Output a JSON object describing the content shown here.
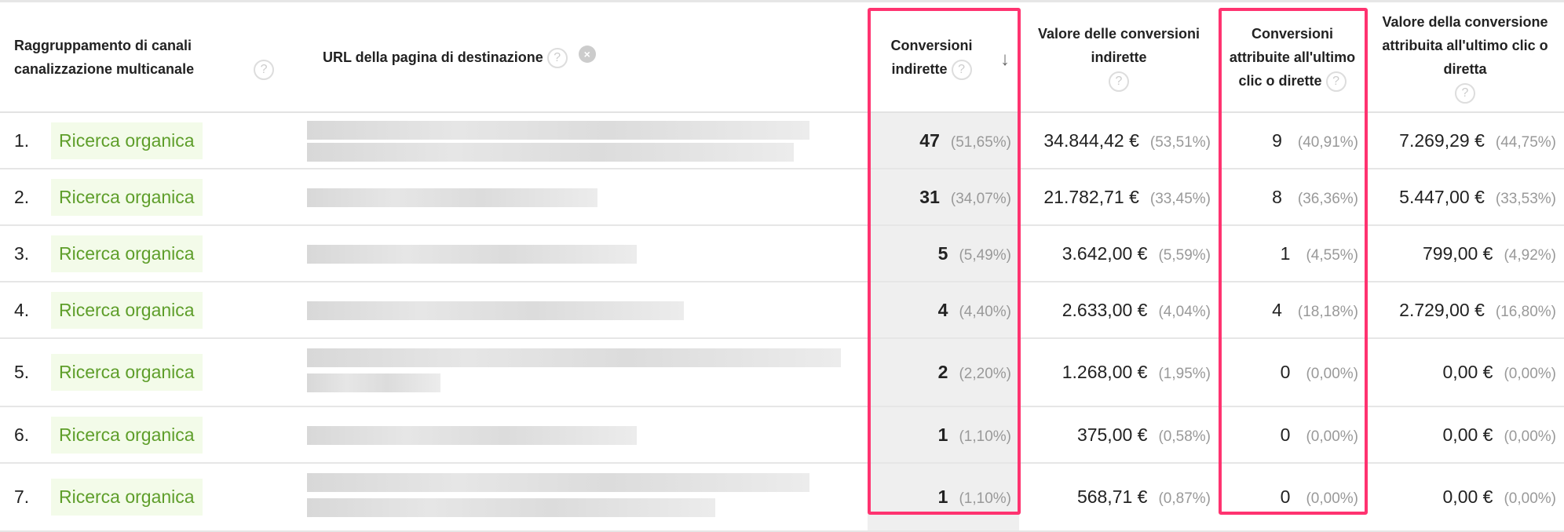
{
  "headers": {
    "channel": "Raggruppamento di canali canalizzazione multicanale",
    "url": "URL della pagina di destinazione",
    "assisted": "Conversioni indirette",
    "assisted_value": "Valore delle conversioni indirette",
    "last_click": "Conversioni attribuite all'ultimo clic o dirette",
    "last_click_value": "Valore della conversione attribuita all'ultimo clic o diretta"
  },
  "icons": {
    "help": "?",
    "remove": "×",
    "sort": "↓"
  },
  "highlight_color": "#ff3370",
  "rows": [
    {
      "idx": "1.",
      "channel": "Ricerca organica",
      "assisted": "47",
      "assisted_pct": "(51,65%)",
      "assisted_value": "34.844,42 €",
      "assisted_value_pct": "(53,51%)",
      "last": "9",
      "last_pct": "(40,91%)",
      "last_value": "7.269,29 €",
      "last_value_pct": "(44,75%)"
    },
    {
      "idx": "2.",
      "channel": "Ricerca organica",
      "assisted": "31",
      "assisted_pct": "(34,07%)",
      "assisted_value": "21.782,71 €",
      "assisted_value_pct": "(33,45%)",
      "last": "8",
      "last_pct": "(36,36%)",
      "last_value": "5.447,00 €",
      "last_value_pct": "(33,53%)"
    },
    {
      "idx": "3.",
      "channel": "Ricerca organica",
      "assisted": "5",
      "assisted_pct": "(5,49%)",
      "assisted_value": "3.642,00 €",
      "assisted_value_pct": "(5,59%)",
      "last": "1",
      "last_pct": "(4,55%)",
      "last_value": "799,00 €",
      "last_value_pct": "(4,92%)"
    },
    {
      "idx": "4.",
      "channel": "Ricerca organica",
      "assisted": "4",
      "assisted_pct": "(4,40%)",
      "assisted_value": "2.633,00 €",
      "assisted_value_pct": "(4,04%)",
      "last": "4",
      "last_pct": "(18,18%)",
      "last_value": "2.729,00 €",
      "last_value_pct": "(16,80%)"
    },
    {
      "idx": "5.",
      "channel": "Ricerca organica",
      "assisted": "2",
      "assisted_pct": "(2,20%)",
      "assisted_value": "1.268,00 €",
      "assisted_value_pct": "(1,95%)",
      "last": "0",
      "last_pct": "(0,00%)",
      "last_value": "0,00 €",
      "last_value_pct": "(0,00%)"
    },
    {
      "idx": "6.",
      "channel": "Ricerca organica",
      "assisted": "1",
      "assisted_pct": "(1,10%)",
      "assisted_value": "375,00 €",
      "assisted_value_pct": "(0,58%)",
      "last": "0",
      "last_pct": "(0,00%)",
      "last_value": "0,00 €",
      "last_value_pct": "(0,00%)"
    },
    {
      "idx": "7.",
      "channel": "Ricerca organica",
      "assisted": "1",
      "assisted_pct": "(1,10%)",
      "assisted_value": "568,71 €",
      "assisted_value_pct": "(0,87%)",
      "last": "0",
      "last_pct": "(0,00%)",
      "last_value": "0,00 €",
      "last_value_pct": "(0,00%)"
    }
  ]
}
